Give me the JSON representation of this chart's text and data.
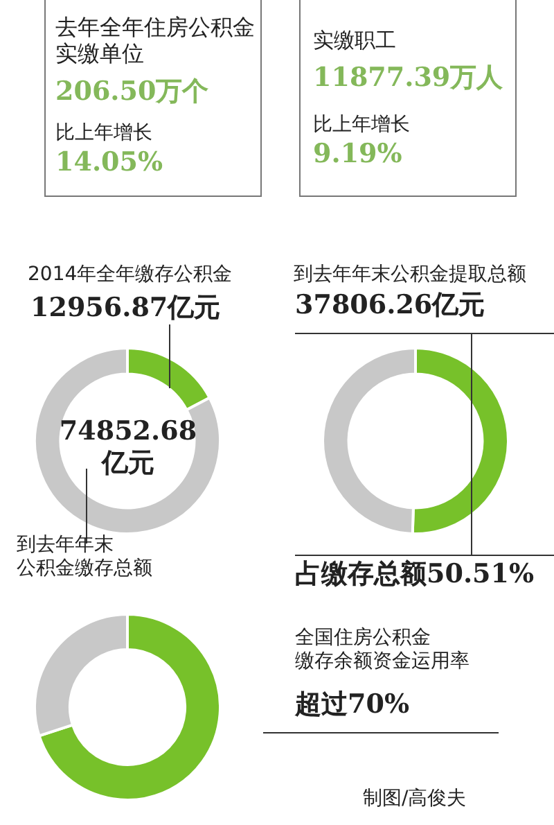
{
  "chart_data": [
    {
      "type": "other",
      "title": "去年全年住房公积金实缴单位",
      "annotations": [
        "206.50万个",
        "比上年增长",
        "14.05%"
      ]
    },
    {
      "type": "other",
      "title": "实缴职工",
      "annotations": [
        "11877.39万人",
        "比上年增长",
        "9.19%"
      ]
    },
    {
      "type": "donut",
      "title": "2014年全年缴存公积金",
      "categories": [
        null,
        null
      ],
      "values": [
        17.31,
        82.69
      ],
      "colors": [
        "#77c12a",
        "#c8c8c8"
      ],
      "annotations": [
        "12956.87亿元",
        "74852.68亿元",
        "到去年年末",
        "公积金缴存总额"
      ]
    },
    {
      "type": "donut",
      "title": "到去年年末公积金提取总额",
      "categories": [
        null,
        null
      ],
      "values": [
        50.51,
        49.49
      ],
      "colors": [
        "#77c12a",
        "#c8c8c8"
      ],
      "annotations": [
        "37806.26亿元",
        "占缴存总额50.51%"
      ]
    },
    {
      "type": "donut",
      "categories": [
        null,
        null
      ],
      "values": [
        70,
        30
      ],
      "colors": [
        "#77c12a",
        "#c8c8c8"
      ],
      "annotations": [
        "全国住房公积金",
        "缴存余额资金运用率",
        "超过70%",
        "制图/高俊夫"
      ]
    }
  ]
}
